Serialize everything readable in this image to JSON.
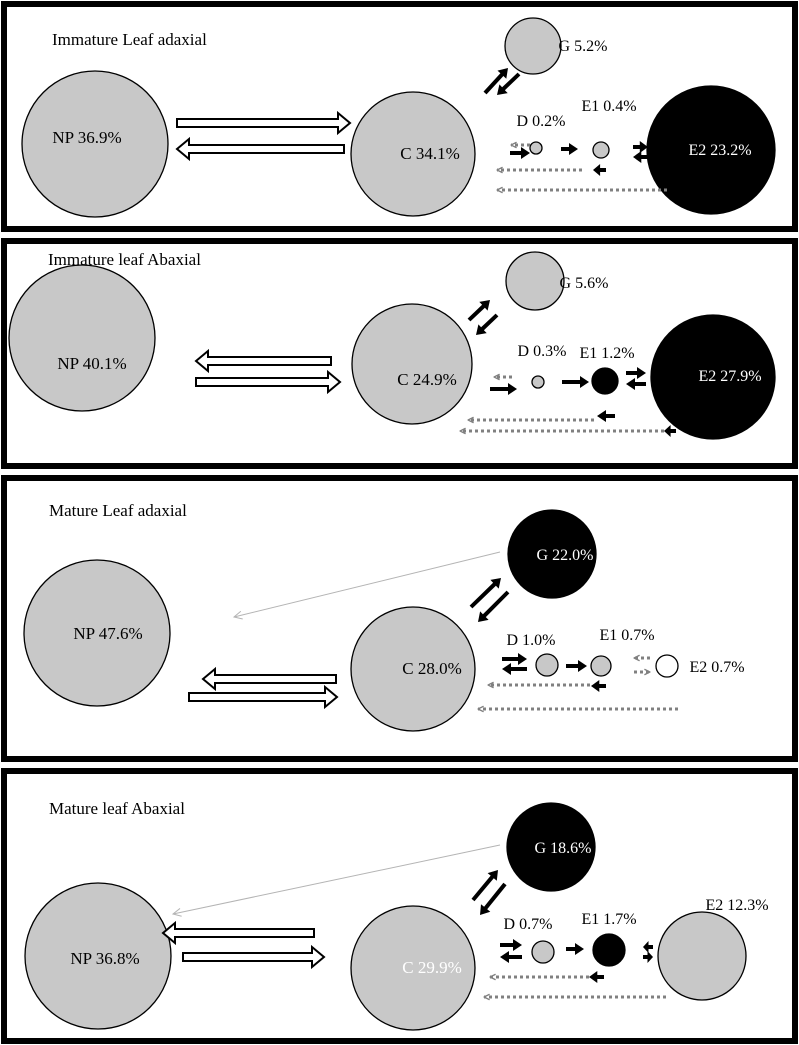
{
  "colors": {
    "gray": "#c8c8c8",
    "black": "#000000",
    "white": "#ffffff",
    "dotted": "#808080",
    "thin": "#b4b4b4"
  },
  "panels": [
    {
      "title": "Immature Leaf adaxial",
      "nodes": [
        {
          "id": "NP",
          "label": "NP 36.9%",
          "fill": "gray"
        },
        {
          "id": "C",
          "label": "C 34.1%",
          "fill": "gray"
        },
        {
          "id": "G",
          "label": "G 5.2%",
          "fill": "gray"
        },
        {
          "id": "D",
          "label": "D 0.2%",
          "fill": "gray"
        },
        {
          "id": "E1",
          "label": "E1 0.4%",
          "fill": "gray"
        },
        {
          "id": "E2",
          "label": "E2 23.2%",
          "fill": "black"
        }
      ]
    },
    {
      "title": "Immature leaf Abaxial",
      "nodes": [
        {
          "id": "NP",
          "label": "NP 40.1%",
          "fill": "gray"
        },
        {
          "id": "C",
          "label": "C 24.9%",
          "fill": "gray"
        },
        {
          "id": "G",
          "label": "G 5.6%",
          "fill": "gray"
        },
        {
          "id": "D",
          "label": "D 0.3%",
          "fill": "gray"
        },
        {
          "id": "E1",
          "label": "E1 1.2%",
          "fill": "black"
        },
        {
          "id": "E2",
          "label": "E2 27.9%",
          "fill": "black"
        }
      ]
    },
    {
      "title": "Mature Leaf adaxial",
      "nodes": [
        {
          "id": "NP",
          "label": "NP 47.6%",
          "fill": "gray"
        },
        {
          "id": "C",
          "label": "C 28.0%",
          "fill": "gray"
        },
        {
          "id": "G",
          "label": "G 22.0%",
          "fill": "black"
        },
        {
          "id": "D",
          "label": "D 1.0%",
          "fill": "gray"
        },
        {
          "id": "E1",
          "label": "E1 0.7%",
          "fill": "gray"
        },
        {
          "id": "E2",
          "label": "E2 0.7%",
          "fill": "white"
        }
      ]
    },
    {
      "title": "Mature leaf Abaxial",
      "nodes": [
        {
          "id": "NP",
          "label": "NP 36.8%",
          "fill": "gray"
        },
        {
          "id": "C",
          "label": "C 29.9%",
          "fill": "gray"
        },
        {
          "id": "G",
          "label": "G 18.6%",
          "fill": "black"
        },
        {
          "id": "D",
          "label": "D 0.7%",
          "fill": "gray"
        },
        {
          "id": "E1",
          "label": "E1 1.7%",
          "fill": "black"
        },
        {
          "id": "E2",
          "label": "E2 12.3%",
          "fill": "gray"
        }
      ]
    }
  ]
}
